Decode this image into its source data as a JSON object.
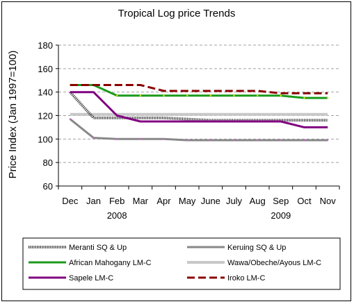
{
  "chart_data": {
    "type": "line",
    "title": "Tropical Log price Trends",
    "ylabel": "Price Index (Jan 1997=100)",
    "xlabel": "",
    "ylim": [
      60,
      180
    ],
    "yticks": [
      60,
      80,
      100,
      120,
      140,
      160,
      180
    ],
    "grid": true,
    "legend_position": "bottom",
    "categories": [
      "Dec",
      "Jan",
      "Feb",
      "Mar",
      "Apr",
      "May",
      "June",
      "July",
      "Aug",
      "Sep",
      "Oct",
      "Nov"
    ],
    "year_labels": [
      {
        "label": "2008",
        "category": "Feb"
      },
      {
        "label": "2009",
        "category": "Sep"
      }
    ],
    "series": [
      {
        "name": "Meranti SQ & Up",
        "color": "#3a3a3a",
        "style": "dotted-thick",
        "values": [
          140,
          118,
          118,
          118,
          118,
          117,
          116,
          116,
          116,
          116,
          116,
          116
        ]
      },
      {
        "name": "Keruing SQ & Up",
        "color": "#888888",
        "style": "solid",
        "values": [
          117,
          101,
          100,
          100,
          100,
          99,
          99,
          99,
          99,
          99,
          99,
          99
        ]
      },
      {
        "name": "African Mahogany LM-C",
        "color": "#1a9a1a",
        "style": "solid",
        "values": [
          146,
          146,
          137,
          137,
          137,
          137,
          137,
          137,
          137,
          137,
          135,
          135
        ]
      },
      {
        "name": "Wawa/Obeche/Ayous LM-C",
        "color": "#c8c8c8",
        "style": "solid",
        "values": [
          121,
          121,
          121,
          121,
          121,
          121,
          121,
          121,
          121,
          121,
          121,
          121
        ]
      },
      {
        "name": "Sapele LM-C",
        "color": "#800080",
        "style": "solid",
        "values": [
          140,
          140,
          120,
          115,
          115,
          115,
          115,
          115,
          115,
          115,
          110,
          110
        ]
      },
      {
        "name": "Iroko LM-C",
        "color": "#8b0000",
        "style": "dashed",
        "values": [
          146,
          146,
          146,
          146,
          141,
          141,
          141,
          141,
          141,
          139,
          139,
          139
        ]
      }
    ]
  }
}
